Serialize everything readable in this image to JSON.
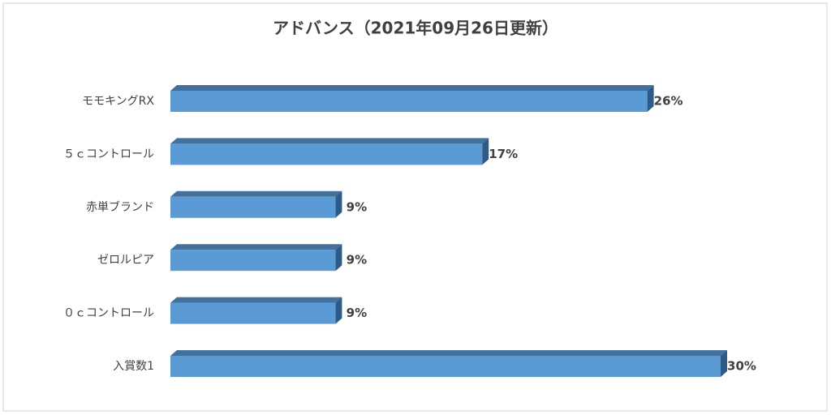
{
  "chart_data": {
    "type": "bar",
    "orientation": "horizontal",
    "title": "アドバンス（2021年09月26日更新）",
    "categories": [
      "モモキングRX",
      "５ｃコントロール",
      "赤単ブランド",
      "ゼロルピア",
      "０ｃコントロール",
      "入賞数1"
    ],
    "values": [
      26,
      17,
      9,
      9,
      9,
      30
    ],
    "value_labels": [
      "26%",
      "17%",
      "9%",
      "9%",
      "9%",
      "30%"
    ],
    "color": "#5b9bd5"
  }
}
